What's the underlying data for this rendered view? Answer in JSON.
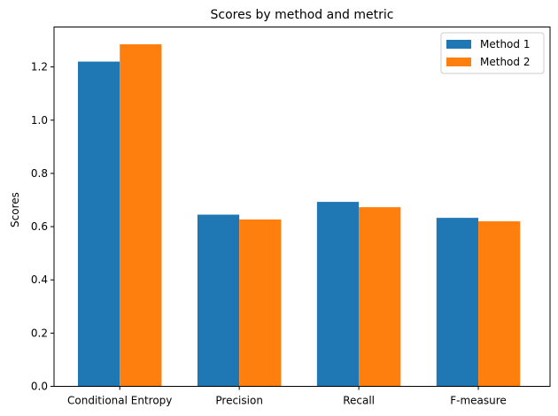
{
  "chart_data": {
    "type": "bar",
    "title": "Scores by method and metric",
    "xlabel": "",
    "ylabel": "Scores",
    "categories": [
      "Conditional Entropy",
      "Precision",
      "Recall",
      "F-measure"
    ],
    "series": [
      {
        "name": "Method 1",
        "color": "#1f77b4",
        "values": [
          1.22,
          0.645,
          0.693,
          0.633
        ]
      },
      {
        "name": "Method 2",
        "color": "#ff7f0e",
        "values": [
          1.285,
          0.627,
          0.673,
          0.62
        ]
      }
    ],
    "ylim": [
      0,
      1.35
    ],
    "yticks": [
      "0.0",
      "0.2",
      "0.4",
      "0.6",
      "0.8",
      "1.0",
      "1.2"
    ],
    "grid": false,
    "legend_position": "top-right"
  }
}
